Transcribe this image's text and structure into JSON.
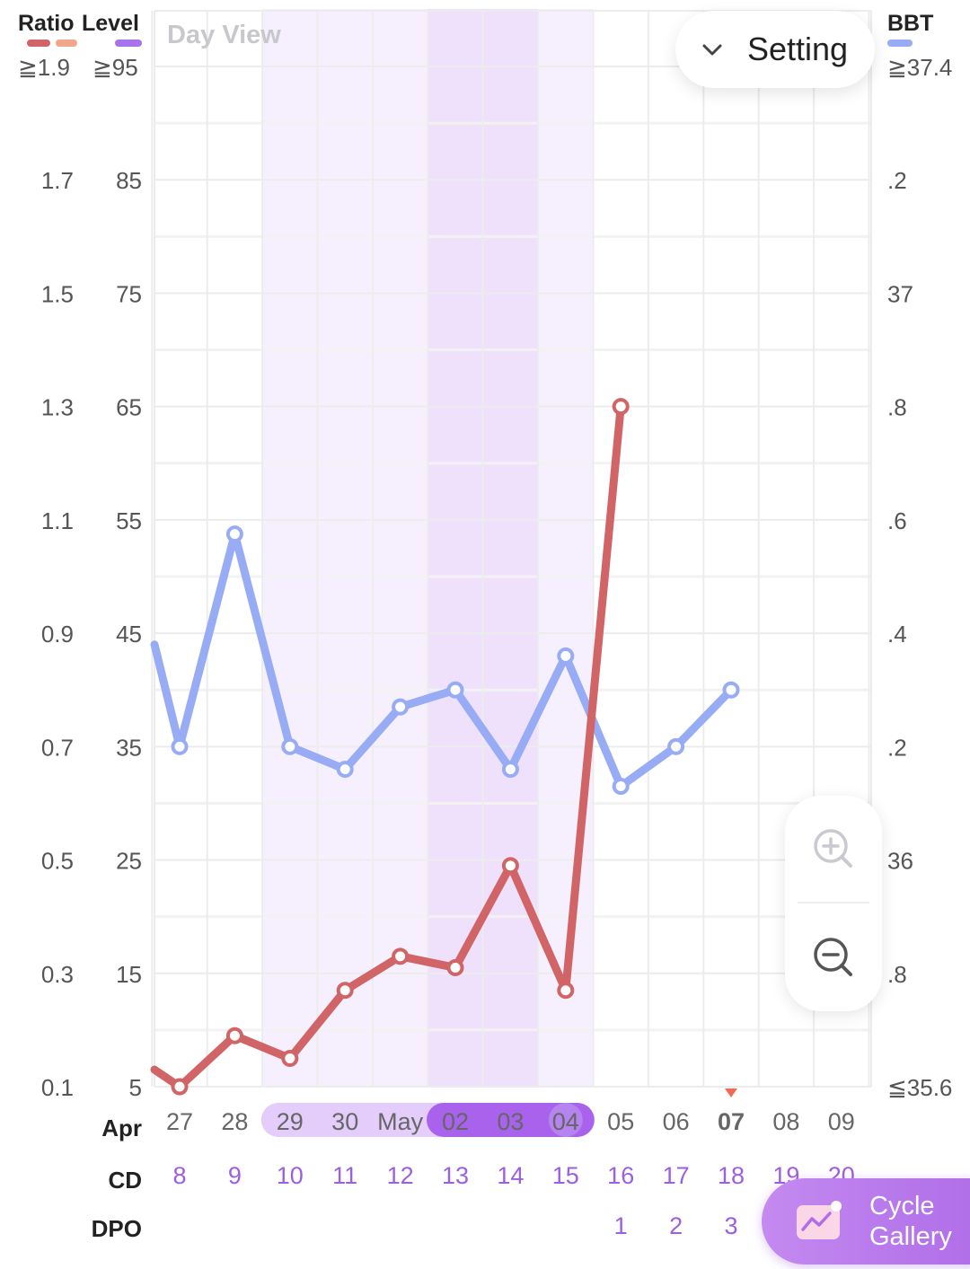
{
  "header": {
    "left_title_1": "Ratio",
    "left_title_2": "Level",
    "left_cap_1": "≧1.9",
    "left_cap_2": "≧95",
    "view_mode": "Day View",
    "right_title": "BBT",
    "right_cap": "≧37.4"
  },
  "setting_label": "Setting",
  "gallery_label_1": "Cycle",
  "gallery_label_2": "Gallery",
  "colors": {
    "ratio": "#d06466",
    "ratio_light": "#f2a68a",
    "level": "#a772ee",
    "bbt": "#97acf5",
    "accent": "#9c5fe0"
  },
  "chart_data": {
    "type": "line",
    "axes": {
      "ratio_ticks": [
        "0.1",
        "0.3",
        "0.5",
        "0.7",
        "0.9",
        "1.1",
        "1.3",
        "1.5",
        "1.7"
      ],
      "level_ticks": [
        "5",
        "15",
        "25",
        "35",
        "45",
        "55",
        "65",
        "75",
        "85"
      ],
      "bbt_ticks": [
        "≦35.6",
        ".8",
        "36",
        ".2",
        ".4",
        ".6",
        ".8",
        "37",
        ".2"
      ],
      "ratio_range": [
        0.1,
        1.9
      ],
      "level_range": [
        5,
        95
      ],
      "bbt_range": [
        35.6,
        37.4
      ]
    },
    "x_axis": {
      "month_label": "Apr",
      "dates": [
        "27",
        "28",
        "29",
        "30",
        "May",
        "02",
        "03",
        "04",
        "05",
        "06",
        "07",
        "08",
        "09"
      ],
      "today": "07",
      "cd_label": "CD",
      "cd": [
        "8",
        "9",
        "10",
        "11",
        "12",
        "13",
        "14",
        "15",
        "16",
        "17",
        "18",
        "19",
        "20"
      ],
      "dpo_label": "DPO",
      "dpo": [
        "",
        "",
        "",
        "",
        "",
        "",
        "",
        "",
        "1",
        "2",
        "3",
        "",
        ""
      ]
    },
    "fertile_window": {
      "start_index": 2,
      "end_index": 7
    },
    "peak_window": {
      "start_index": 5,
      "end_index": 6
    },
    "series": [
      {
        "name": "Level",
        "axis": "level",
        "values": [
          5,
          9.5,
          7.5,
          13.5,
          16.5,
          15.5,
          24.5,
          13.5,
          65,
          null,
          null,
          null,
          null
        ]
      },
      {
        "name": "BBT",
        "axis": "bbt",
        "values": [
          36.2,
          36.575,
          36.2,
          36.16,
          36.27,
          36.3,
          36.16,
          36.36,
          36.13,
          36.2,
          36.3,
          null,
          null
        ]
      }
    ],
    "grid": true
  }
}
